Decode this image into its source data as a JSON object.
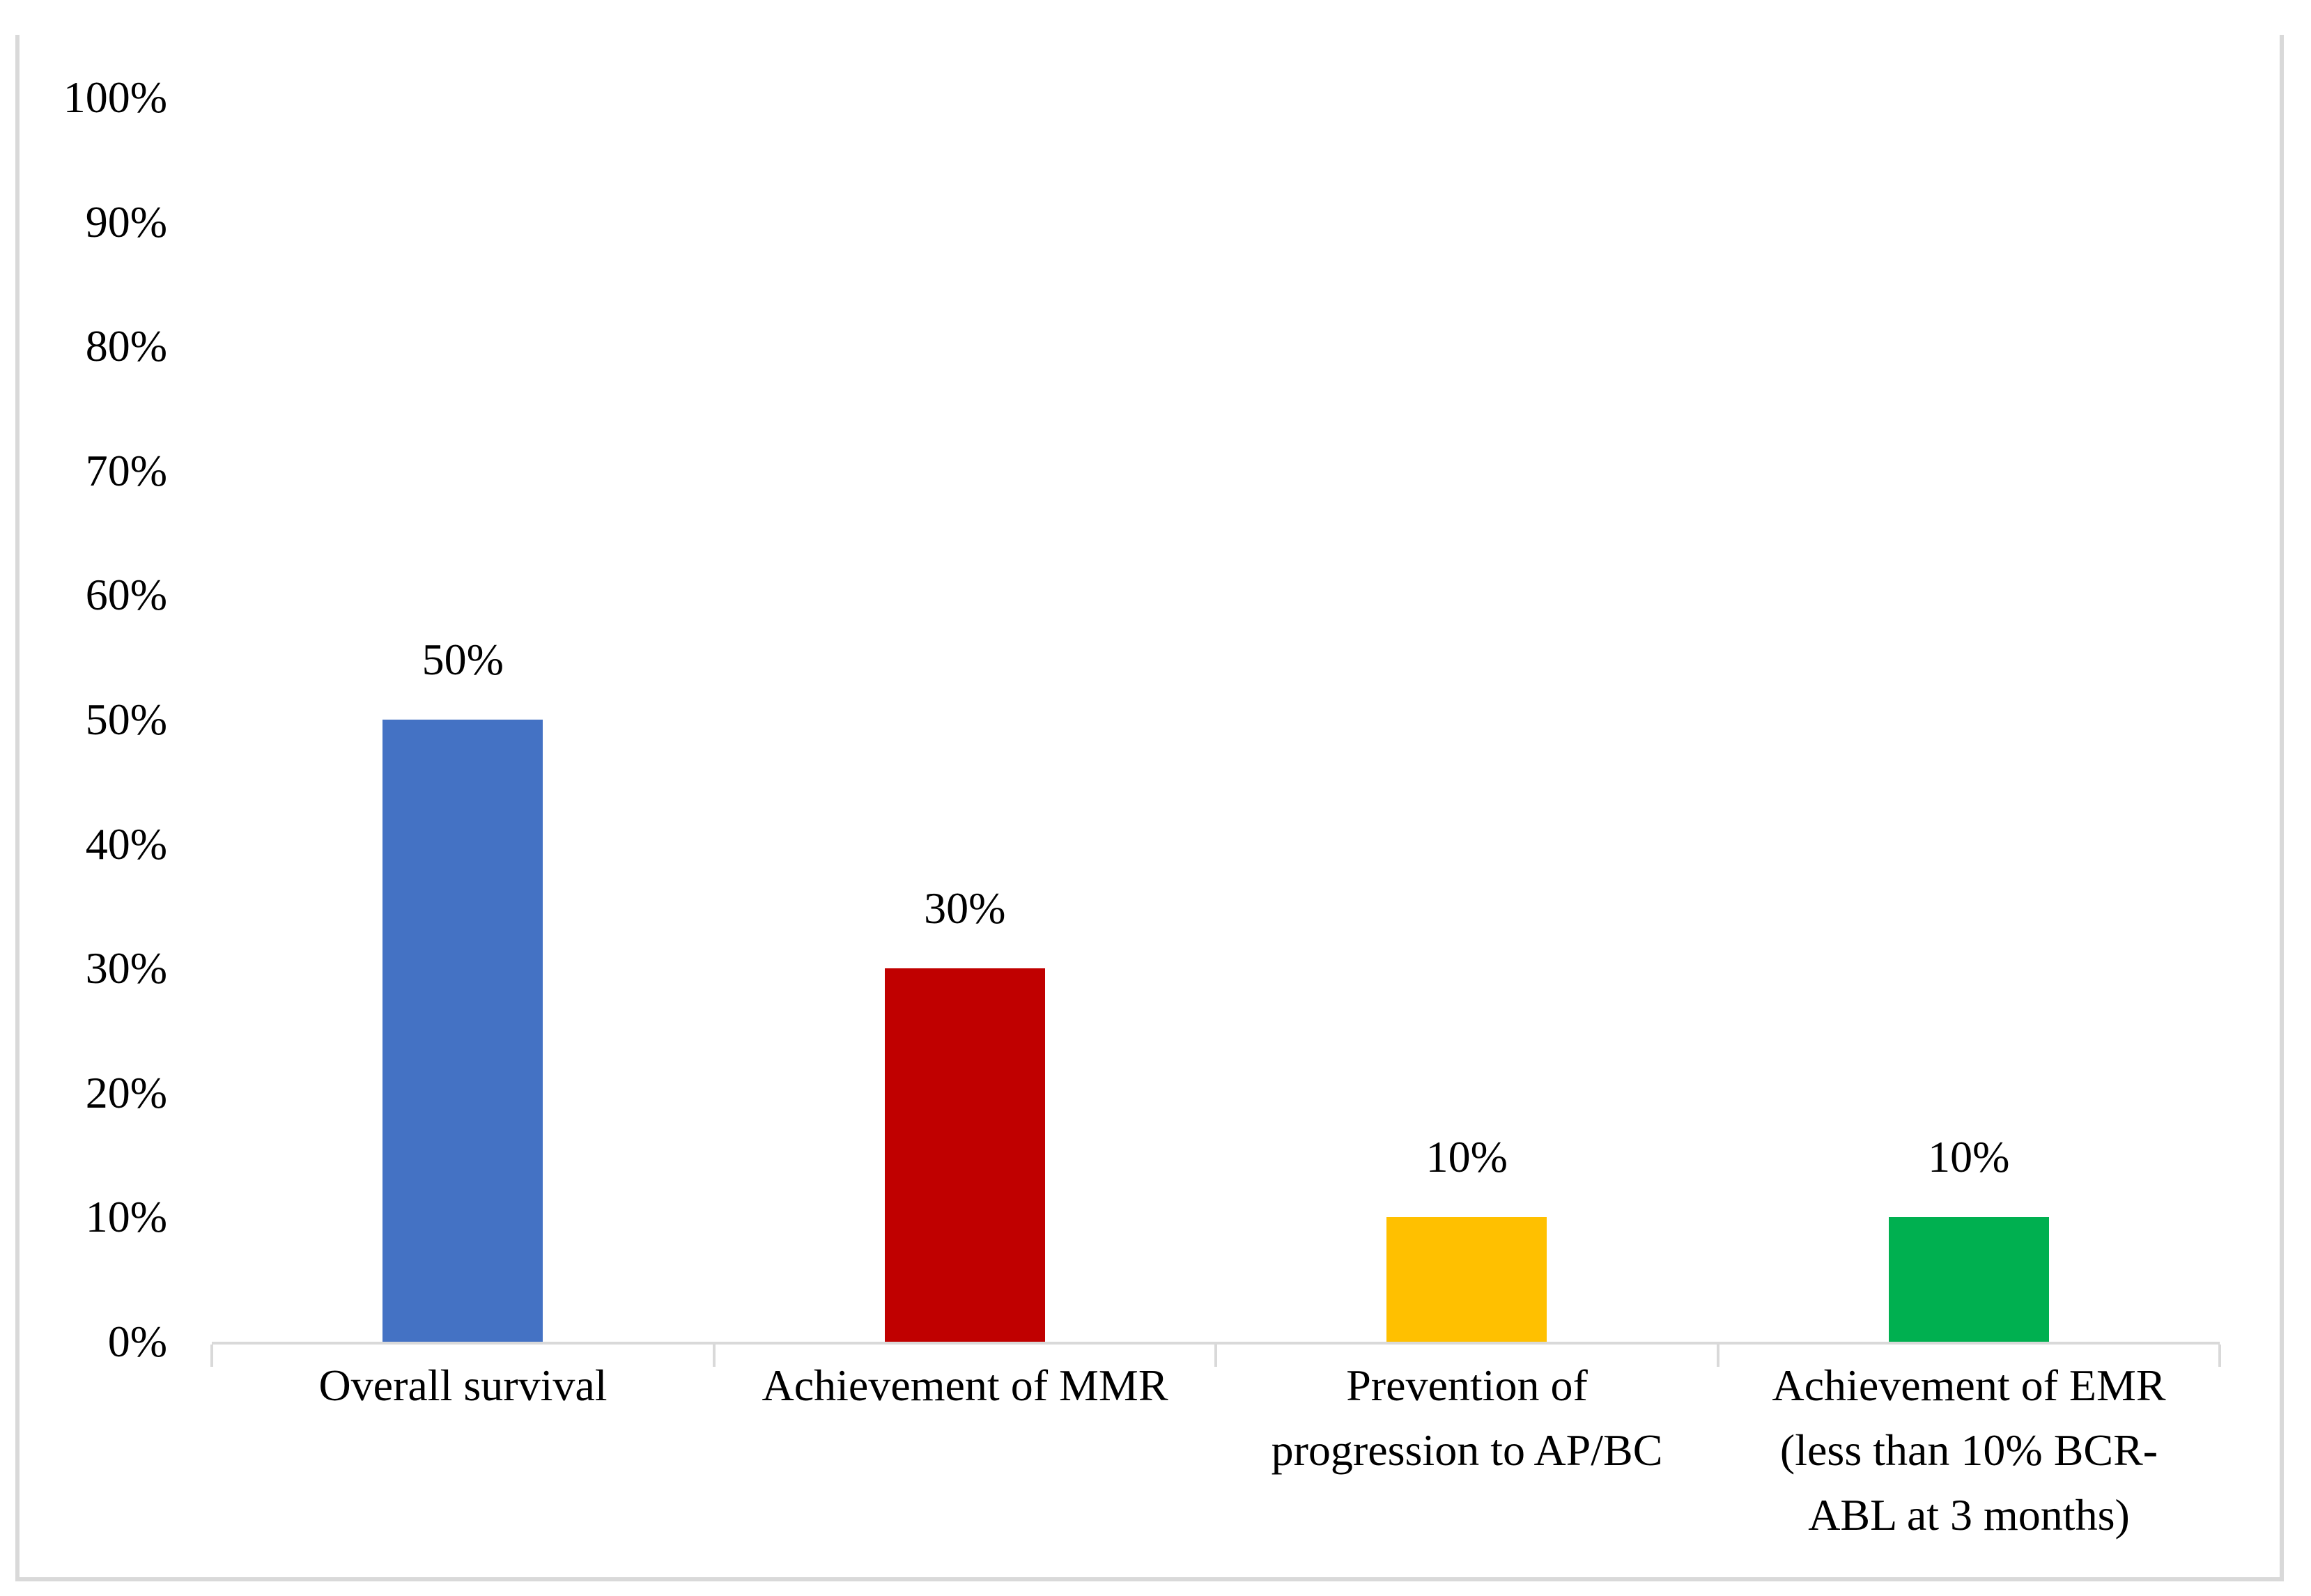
{
  "figure": {
    "background": "#FFFFFF",
    "frame_border_color": "#D9D9D9"
  },
  "chart_data": {
    "type": "bar",
    "title": "",
    "xlabel": "",
    "ylabel": "",
    "categories": [
      "Overall survival",
      "Achievement of MMR",
      "Prevention of progression to AP/BC",
      "Achievement of EMR (less than 10% BCR-ABL at 3 months)"
    ],
    "category_display": [
      "Overall survival",
      "Achievement of MMR",
      "Prevention of\nprogression to AP/BC",
      "Achievement of EMR\n(less than 10% BCR-\nABL at 3 months)"
    ],
    "values": [
      50,
      30,
      10,
      10
    ],
    "data_labels": [
      "50%",
      "30%",
      "10%",
      "10%"
    ],
    "series_colors": [
      "#4472C4",
      "#C00000",
      "#FFC000",
      "#00B050"
    ],
    "y_axis": {
      "min": 0,
      "max": 100,
      "step": 10,
      "tick_labels": [
        "100%",
        "90%",
        "80%",
        "70%",
        "60%",
        "50%",
        "40%",
        "30%",
        "20%",
        "10%",
        "0%"
      ]
    },
    "axis_color": "#D9D9D9",
    "text_color": "#000000",
    "grid": "off",
    "legend": "none"
  }
}
